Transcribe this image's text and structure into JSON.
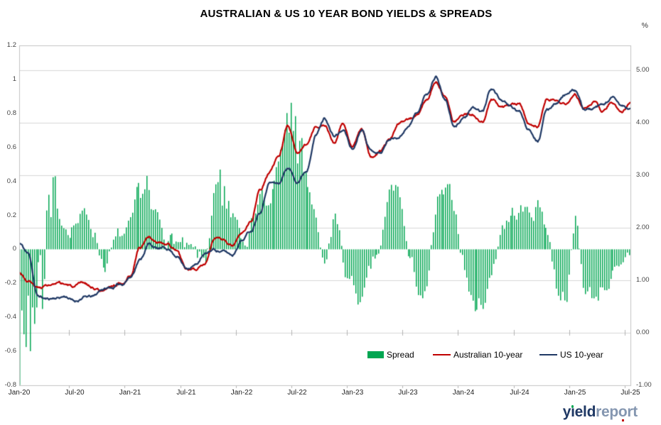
{
  "title": "AUSTRALIAN & US 10 YEAR BOND YIELDS & SPREADS",
  "right_axis": {
    "unit": "%",
    "ticks": [
      "5.00",
      "4.00",
      "3.00",
      "2.00",
      "1.00",
      "0.00",
      "-1.00"
    ],
    "min": -1.0,
    "max": 5.47
  },
  "left_axis": {
    "ticks": [
      "1.2",
      "1",
      "0.8",
      "0.6",
      "0.4",
      "0.2",
      "0",
      "-0.2",
      "-0.4",
      "-0.6",
      "-0.8"
    ],
    "min": -0.8,
    "max": 1.2
  },
  "x_axis": {
    "labels": [
      "Jan-20",
      "Jul-20",
      "Jan-21",
      "Jul-21",
      "Jan-22",
      "Jul-22",
      "Jan-23",
      "Jul-23",
      "Jan-24",
      "Jul-24",
      "Jan-25",
      "Jul-25"
    ]
  },
  "legend": [
    {
      "label": "Spread",
      "swatch": "bar",
      "color": "#00A651"
    },
    {
      "label": "Australian 10-year",
      "swatch": "line",
      "color": "#C00000"
    },
    {
      "label": "US 10-year",
      "swatch": "line",
      "color": "#1F3864"
    }
  ],
  "logo": {
    "part1": "yield",
    "part2": "report",
    "part1_color": "#1F3864",
    "part2_color": "#8496B0"
  },
  "colors": {
    "spread_bar": "#00A651",
    "australian_line": "#C00000",
    "us_line": "#1F3864",
    "gridline": "#D6D6D6",
    "plot_border": "#C3C3C3",
    "tick_mark": "#B3B3B3"
  },
  "chart_data": {
    "type": "combo",
    "subtype": "daily bars (spread, left axis) + daily lines (yields, right axis), monthly values estimated below",
    "categories": [
      "Jan-20",
      "Feb-20",
      "Mar-20",
      "Apr-20",
      "May-20",
      "Jun-20",
      "Jul-20",
      "Aug-20",
      "Sep-20",
      "Oct-20",
      "Nov-20",
      "Dec-20",
      "Jan-21",
      "Feb-21",
      "Mar-21",
      "Apr-21",
      "May-21",
      "Jun-21",
      "Jul-21",
      "Aug-21",
      "Sep-21",
      "Oct-21",
      "Nov-21",
      "Dec-21",
      "Jan-22",
      "Feb-22",
      "Mar-22",
      "Apr-22",
      "May-22",
      "Jun-22",
      "Jul-22",
      "Aug-22",
      "Sep-22",
      "Oct-22",
      "Nov-22",
      "Dec-22",
      "Jan-23",
      "Feb-23",
      "Mar-23",
      "Apr-23",
      "May-23",
      "Jun-23",
      "Jul-23",
      "Aug-23",
      "Sep-23",
      "Oct-23",
      "Nov-23",
      "Dec-23",
      "Jan-24",
      "Feb-24",
      "Mar-24",
      "Apr-24",
      "May-24",
      "Jun-24",
      "Jul-24",
      "Aug-24",
      "Sep-24",
      "Oct-24",
      "Nov-24",
      "Dec-24",
      "Jan-25",
      "Feb-25",
      "Mar-25",
      "Apr-25",
      "May-25",
      "Jun-25",
      "Jul-25"
    ],
    "series": [
      {
        "name": "Spread",
        "type": "bar",
        "axis": "left",
        "color": "#00A651",
        "values": [
          -0.5,
          -0.4,
          -0.3,
          0.22,
          0.25,
          0.2,
          0.25,
          0.22,
          0.15,
          -0.05,
          0.02,
          0.05,
          0.05,
          0.25,
          0.12,
          0.1,
          0.06,
          0.05,
          -0.05,
          -0.12,
          -0.15,
          0.28,
          0.2,
          0.15,
          0.12,
          0.2,
          0.42,
          0.25,
          0.48,
          0.8,
          0.55,
          0.45,
          0.1,
          -0.22,
          0.18,
          -0.12,
          -0.25,
          -0.32,
          -0.18,
          -0.05,
          0.28,
          0.3,
          -0.1,
          -0.25,
          -0.28,
          0.22,
          0.25,
          0.18,
          -0.1,
          -0.35,
          -0.3,
          -0.12,
          0.18,
          0.22,
          0.25,
          0.2,
          0.28,
          0.15,
          -0.2,
          -0.22,
          0.2,
          -0.22,
          -0.28,
          -0.18,
          -0.12,
          -0.2,
          -0.1
        ]
      },
      {
        "name": "Australian 10-year",
        "type": "line",
        "axis": "right",
        "color": "#C00000",
        "values": [
          1.15,
          1.0,
          0.85,
          0.9,
          0.9,
          0.9,
          0.85,
          0.9,
          0.85,
          0.8,
          0.9,
          0.97,
          1.1,
          1.65,
          1.8,
          1.7,
          1.65,
          1.55,
          1.2,
          1.15,
          1.3,
          1.8,
          1.75,
          1.65,
          1.9,
          2.15,
          2.8,
          3.1,
          3.35,
          3.95,
          3.45,
          3.6,
          3.9,
          3.95,
          3.6,
          4.0,
          3.55,
          3.85,
          3.35,
          3.45,
          3.65,
          4.0,
          4.05,
          4.15,
          4.45,
          4.8,
          4.5,
          4.0,
          4.15,
          4.15,
          4.0,
          4.45,
          4.3,
          4.3,
          4.35,
          3.95,
          3.95,
          4.5,
          4.5,
          4.4,
          4.55,
          4.3,
          4.4,
          4.2,
          4.4,
          4.2,
          4.35
        ]
      },
      {
        "name": "US 10-year",
        "type": "line",
        "axis": "right",
        "color": "#1F3864",
        "values": [
          1.7,
          1.5,
          0.7,
          0.64,
          0.67,
          0.7,
          0.6,
          0.68,
          0.68,
          0.83,
          0.86,
          0.92,
          1.07,
          1.4,
          1.7,
          1.6,
          1.6,
          1.48,
          1.25,
          1.3,
          1.48,
          1.58,
          1.55,
          1.48,
          1.78,
          1.95,
          2.35,
          2.9,
          2.85,
          3.15,
          2.9,
          3.1,
          3.8,
          4.1,
          3.75,
          3.85,
          3.5,
          3.9,
          3.5,
          3.45,
          3.7,
          3.75,
          3.95,
          4.2,
          4.55,
          4.9,
          4.45,
          3.9,
          4.1,
          4.25,
          4.2,
          4.65,
          4.45,
          4.3,
          4.2,
          3.9,
          3.7,
          4.25,
          4.4,
          4.55,
          4.6,
          4.25,
          4.25,
          4.3,
          4.45,
          4.3,
          4.25
        ]
      }
    ],
    "left_axis_range": [
      -0.8,
      1.2
    ],
    "right_axis_range": [
      -1.0,
      5.47
    ],
    "gridlines": "horizontal at right-axis integers 0.00 to 5.00",
    "legend_position": "inside bottom",
    "extremes": {
      "min_spread": -0.75,
      "min_spread_month": "Mar-20",
      "max_spread": 0.97,
      "max_spread_month": "Jun-22",
      "max_yield": 5.0,
      "max_yield_month": "Oct-23",
      "min_yield": 0.55,
      "min_yield_month": "Mar-20"
    },
    "volatile_periods": [
      {
        "start_index": 0,
        "end_index": 3,
        "range": 0.28
      },
      {
        "start_index": 13,
        "end_index": 13,
        "range": 0.12
      },
      {
        "start_index": 21,
        "end_index": 22,
        "range": 0.12
      },
      {
        "start_index": 29,
        "end_index": 30,
        "range": 0.17
      }
    ]
  }
}
